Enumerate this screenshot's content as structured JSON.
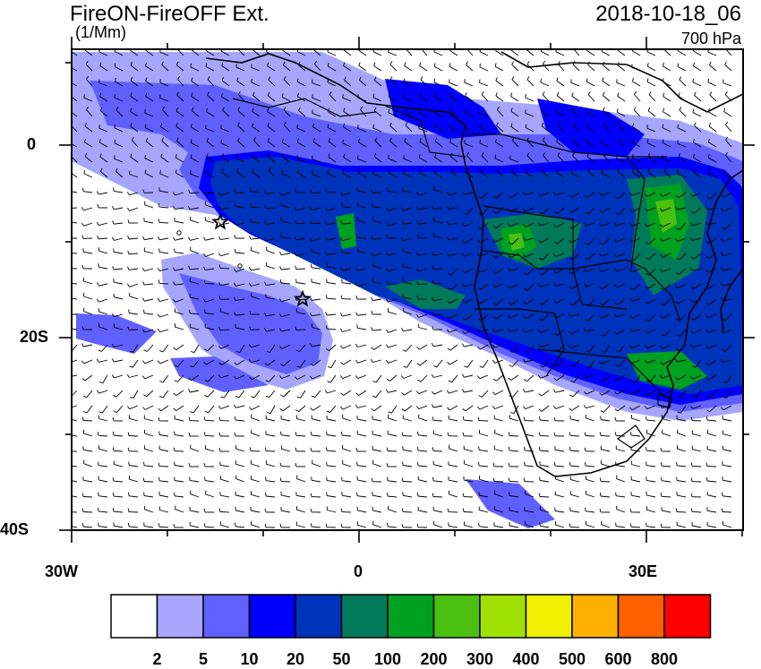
{
  "header": {
    "title": "FireON-FireOFF Ext.",
    "units": "(1/Mm)",
    "date": "2018-10-18_06",
    "level": "700 hPa"
  },
  "axes": {
    "lon_ticks": [
      "30W",
      "0",
      "30E"
    ],
    "lat_ticks": [
      "0",
      "20S",
      "40S"
    ]
  },
  "colorbar": {
    "colors": [
      "#ffffff",
      "#a6a6ff",
      "#6060ff",
      "#0000ff",
      "#0033bb",
      "#007a5a",
      "#00a020",
      "#4cc010",
      "#a0e000",
      "#f0f000",
      "#ffb000",
      "#ff6000",
      "#ff0000"
    ],
    "labels": [
      "2",
      "5",
      "10",
      "20",
      "50",
      "100",
      "200",
      "300",
      "400",
      "500",
      "600",
      "800"
    ]
  },
  "palette": {
    "light": "#a6a6ff",
    "mid": "#6060ff",
    "blue": "#0000ff",
    "dark": "#0033bb",
    "teal": "#007a5a",
    "green": "#00a020",
    "lgreen": "#4cc010"
  },
  "icons": {
    "star_markers": "star-icon",
    "circle_markers": "circle-icon",
    "wind": "wind-barb-icon"
  }
}
